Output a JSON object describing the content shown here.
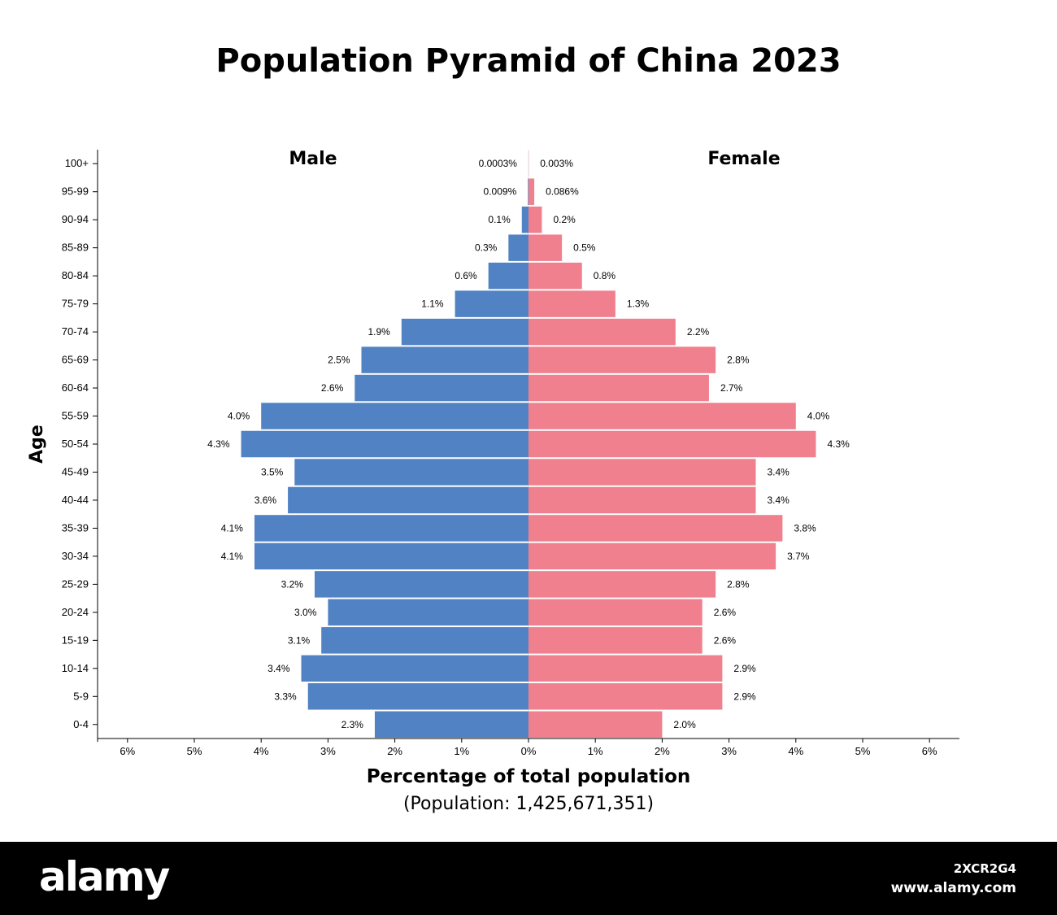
{
  "chart_data": {
    "type": "bar",
    "orientation": "horizontal-pyramid",
    "title": "Population Pyramid of China 2023",
    "subtitle": "(Population: 1,425,671,351)",
    "xlabel": "Percentage of total population",
    "ylabel": "Age",
    "left_label": "Male",
    "right_label": "Female",
    "xlim": [
      -6,
      6
    ],
    "x_ticks": [
      "6%",
      "5%",
      "4%",
      "3%",
      "2%",
      "1%",
      "0%",
      "1%",
      "2%",
      "3%",
      "4%",
      "5%",
      "6%"
    ],
    "categories": [
      "100+",
      "95-99",
      "90-94",
      "85-89",
      "80-84",
      "75-79",
      "70-74",
      "65-69",
      "60-64",
      "55-59",
      "50-54",
      "45-49",
      "40-44",
      "35-39",
      "30-34",
      "25-29",
      "20-24",
      "15-19",
      "10-14",
      "5-9",
      "0-4"
    ],
    "series": [
      {
        "name": "Male",
        "color": "#5183c4",
        "values": [
          0.0003,
          0.009,
          0.1,
          0.3,
          0.6,
          1.1,
          1.9,
          2.5,
          2.6,
          4.0,
          4.3,
          3.5,
          3.6,
          4.1,
          4.1,
          3.2,
          3.0,
          3.1,
          3.4,
          3.3,
          2.3
        ],
        "labels": [
          "0.0003%",
          "0.009%",
          "0.1%",
          "0.3%",
          "0.6%",
          "1.1%",
          "1.9%",
          "2.5%",
          "2.6%",
          "4.0%",
          "4.3%",
          "3.5%",
          "3.6%",
          "4.1%",
          "4.1%",
          "3.2%",
          "3.0%",
          "3.1%",
          "3.4%",
          "3.3%",
          "2.3%"
        ]
      },
      {
        "name": "Female",
        "color": "#f0808d",
        "values": [
          0.003,
          0.086,
          0.2,
          0.5,
          0.8,
          1.3,
          2.2,
          2.8,
          2.7,
          4.0,
          4.3,
          3.4,
          3.4,
          3.8,
          3.7,
          2.8,
          2.6,
          2.6,
          2.9,
          2.9,
          2.0
        ],
        "labels": [
          "0.003%",
          "0.086%",
          "0.2%",
          "0.5%",
          "0.8%",
          "1.3%",
          "2.2%",
          "2.8%",
          "2.7%",
          "4.0%",
          "4.3%",
          "3.4%",
          "3.4%",
          "3.8%",
          "3.7%",
          "2.8%",
          "2.6%",
          "2.6%",
          "2.9%",
          "2.9%",
          "2.0%"
        ]
      }
    ],
    "grid": false,
    "legend": "none"
  },
  "footer": {
    "logo": "alamy",
    "image_code": "2XCR2G4",
    "url": "www.alamy.com"
  }
}
